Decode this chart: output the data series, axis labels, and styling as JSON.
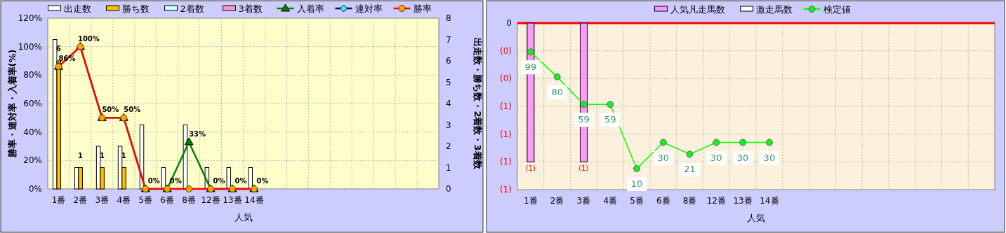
{
  "chart_data": [
    {
      "type": "bar",
      "xlabel": "人気",
      "ylabel": "勝率・連対率・入着率(%)",
      "y2label": "出走数・勝ち数・2着数・3着数",
      "categories": [
        "1番",
        "2番",
        "3番",
        "4番",
        "5番",
        "6番",
        "8番",
        "12番",
        "13番",
        "14番",
        null,
        null,
        null,
        null,
        null,
        null,
        null,
        null
      ],
      "ylim": [
        0,
        120
      ],
      "yticks": [
        {
          "value": 0,
          "label": "0%"
        },
        {
          "value": 20,
          "label": "20%"
        },
        {
          "value": 40,
          "label": "40%"
        },
        {
          "value": 60,
          "label": "60%"
        },
        {
          "value": 80,
          "label": "80%"
        },
        {
          "value": 100,
          "label": "100%"
        },
        {
          "value": 120,
          "label": "120%"
        }
      ],
      "y2lim": [
        0,
        8
      ],
      "y2ticks": [
        0,
        1,
        2,
        3,
        4,
        5,
        6,
        7,
        8
      ],
      "grid": true,
      "legend": "top",
      "series": [
        {
          "name": "出走数",
          "axis": "y2",
          "color": "#ffffff",
          "values": [
            7,
            1,
            2,
            2,
            3,
            1,
            3,
            1,
            1,
            1,
            null,
            null,
            null,
            null,
            null,
            null,
            null,
            null
          ]
        },
        {
          "name": "勝ち数",
          "axis": "y2",
          "color": "#ffc000",
          "values": [
            6,
            1,
            1,
            1,
            0,
            0,
            0,
            0,
            0,
            0,
            null,
            null,
            null,
            null,
            null,
            null,
            null,
            null
          ],
          "value_labels": [
            "6",
            "1",
            "1",
            "1",
            null,
            null,
            null,
            null,
            null,
            null,
            null,
            null,
            null,
            null,
            null,
            null,
            null,
            null
          ]
        },
        {
          "name": "2着数",
          "axis": "y2",
          "color": "#ccffff",
          "values": [
            0,
            0,
            0,
            0,
            0,
            0,
            0,
            0,
            0,
            0,
            null,
            null,
            null,
            null,
            null,
            null,
            null,
            null
          ]
        },
        {
          "name": "3着数",
          "axis": "y2",
          "color": "#ff99cc",
          "values": [
            0,
            0,
            0,
            0,
            0,
            0,
            0,
            0,
            0,
            0,
            null,
            null,
            null,
            null,
            null,
            null,
            null,
            null
          ]
        },
        {
          "name": "入着率",
          "type": "line",
          "color": "#008000",
          "marker": "triangle",
          "values": [
            86,
            100,
            50,
            50,
            0,
            0,
            33,
            0,
            0,
            0,
            null,
            null,
            null,
            null,
            null,
            null,
            null,
            null
          ],
          "value_labels": [
            "86%",
            "100%",
            "50%",
            "50%",
            "0%",
            "0%",
            "33%",
            "0%",
            "0%",
            "0%",
            null,
            null,
            null,
            null,
            null,
            null,
            null,
            null
          ]
        },
        {
          "name": "連対率",
          "type": "line",
          "color": "#000080",
          "marker": "diamond",
          "values": [
            null,
            null,
            null,
            null,
            null,
            null,
            null,
            null,
            null,
            null,
            null,
            null,
            null,
            null,
            null,
            null,
            null,
            null
          ]
        },
        {
          "name": "勝率",
          "type": "line",
          "color": "#ff0000",
          "marker": "circle",
          "values": [
            86,
            100,
            50,
            50,
            0,
            0,
            0,
            0,
            0,
            0,
            null,
            null,
            null,
            null,
            null,
            null,
            null,
            null
          ]
        }
      ]
    },
    {
      "type": "bar",
      "xlabel": "人気",
      "categories": [
        "1番",
        "2番",
        "3番",
        "4番",
        "5番",
        "6番",
        "8番",
        "12番",
        "13番",
        "14番",
        null,
        null,
        null,
        null,
        null,
        null,
        null,
        null
      ],
      "ylim": [
        -1.2,
        0
      ],
      "yticks": [
        {
          "value": 0,
          "label": "0"
        },
        {
          "value": -0.2,
          "label": "(0)"
        },
        {
          "value": -0.4,
          "label": "(0)"
        },
        {
          "value": -0.6,
          "label": "(1)"
        },
        {
          "value": -0.8,
          "label": "(1)"
        },
        {
          "value": -1,
          "label": "(1)"
        },
        {
          "value": -1.2,
          "label": "(1)"
        }
      ],
      "y2lim": [
        -6,
        121
      ],
      "grid": true,
      "legend": "top",
      "ref_lines": [
        {
          "axis": "y",
          "value": 0,
          "color": "#ff0000"
        }
      ],
      "series": [
        {
          "name": "人気凡走馬数",
          "color": "#ff99ff",
          "values": [
            -1,
            0,
            -1,
            0,
            0,
            0,
            0,
            0,
            0,
            0,
            null,
            null,
            null,
            null,
            null,
            null,
            null,
            null
          ],
          "value_labels": [
            "(1)",
            null,
            "(1)",
            null,
            null,
            null,
            null,
            null,
            null,
            null,
            null,
            null,
            null,
            null,
            null,
            null,
            null,
            null
          ]
        },
        {
          "name": "激走馬数",
          "color": "#ffffff",
          "values": [
            0,
            0,
            0,
            0,
            0,
            0,
            0,
            0,
            0,
            0,
            null,
            null,
            null,
            null,
            null,
            null,
            null,
            null
          ]
        },
        {
          "name": "検定値",
          "type": "line",
          "axis": "y2",
          "color": "#00ff00",
          "marker": "circle",
          "data_labels": true,
          "values": [
            99,
            80,
            59,
            59,
            10,
            30,
            21,
            30,
            30,
            30,
            null,
            null,
            null,
            null,
            null,
            null,
            null,
            null
          ]
        }
      ]
    }
  ]
}
